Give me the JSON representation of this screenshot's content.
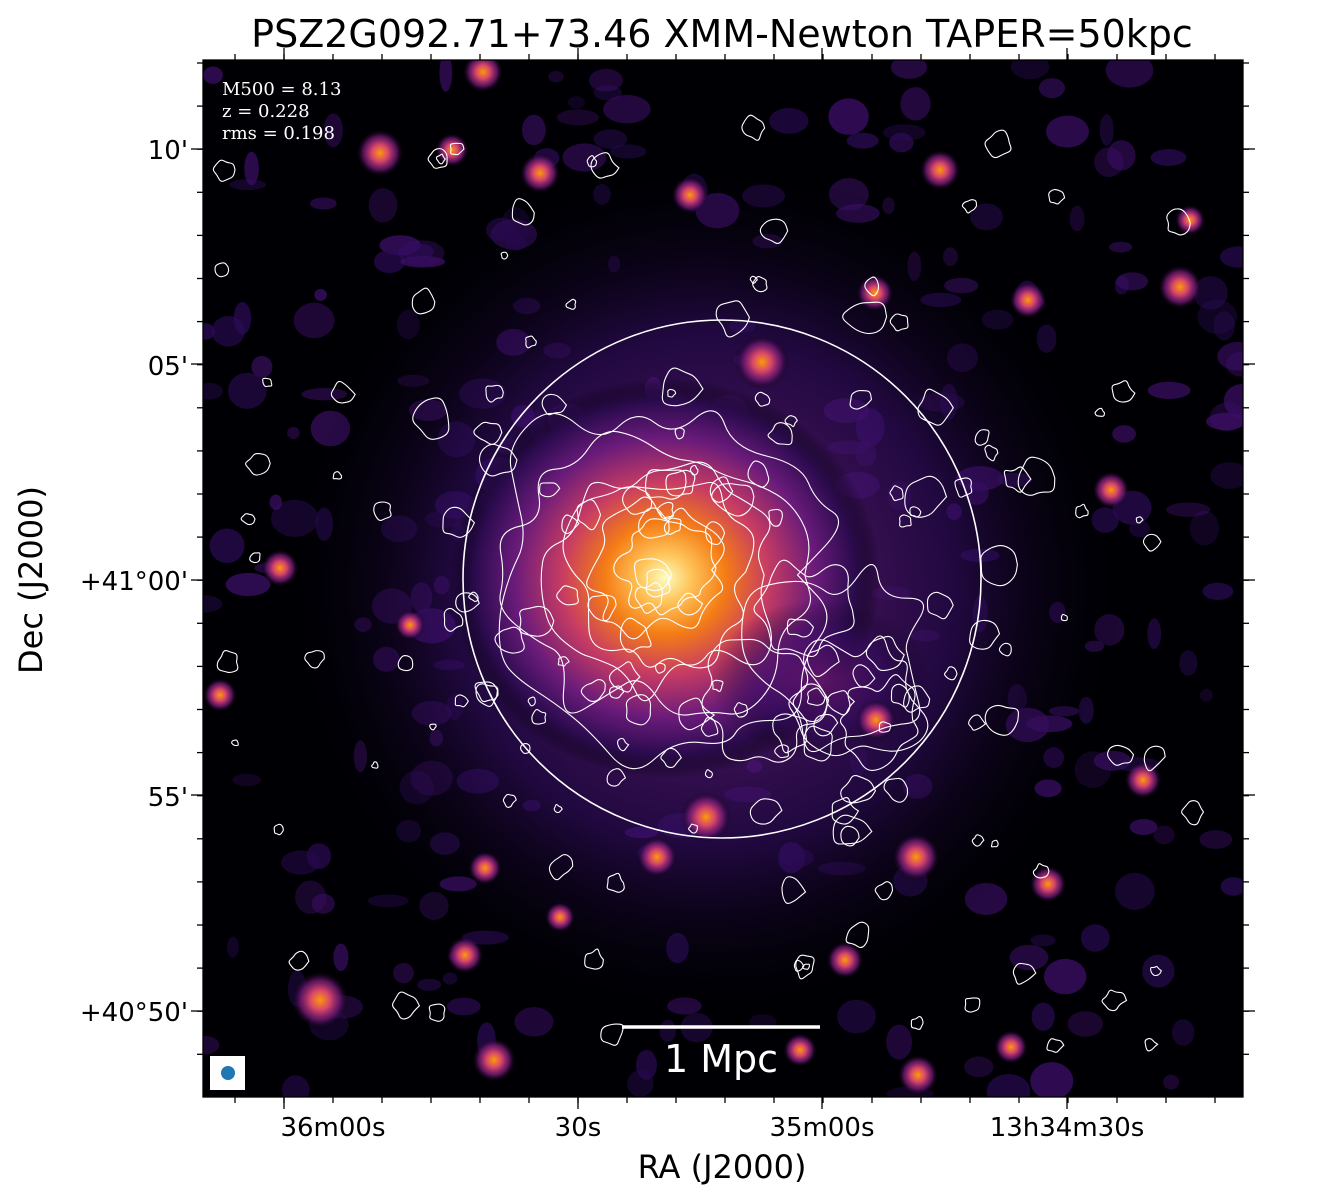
{
  "title": "PSZ2G092.71+73.46 XMM-Newton TAPER=50kpc",
  "info": {
    "m500": "M500 = 8.13",
    "z": "z = 0.228",
    "rms": "rms = 0.198"
  },
  "axes": {
    "xlabel": "RA (J2000)",
    "ylabel": "Dec (J2000)",
    "x_ticks": [
      "36m00s",
      "30s",
      "35m00s",
      "13h34m30s"
    ],
    "y_ticks": [
      "10'",
      "05'",
      "+41°00'",
      "55'",
      "+40°50'"
    ]
  },
  "scalebar": {
    "label": "1 Mpc"
  },
  "colors": {
    "background": "#000000",
    "colormap": "inferno",
    "contours": "#ffffff",
    "r500_circle": "#ffffff",
    "beam": "#1f77b4"
  }
}
